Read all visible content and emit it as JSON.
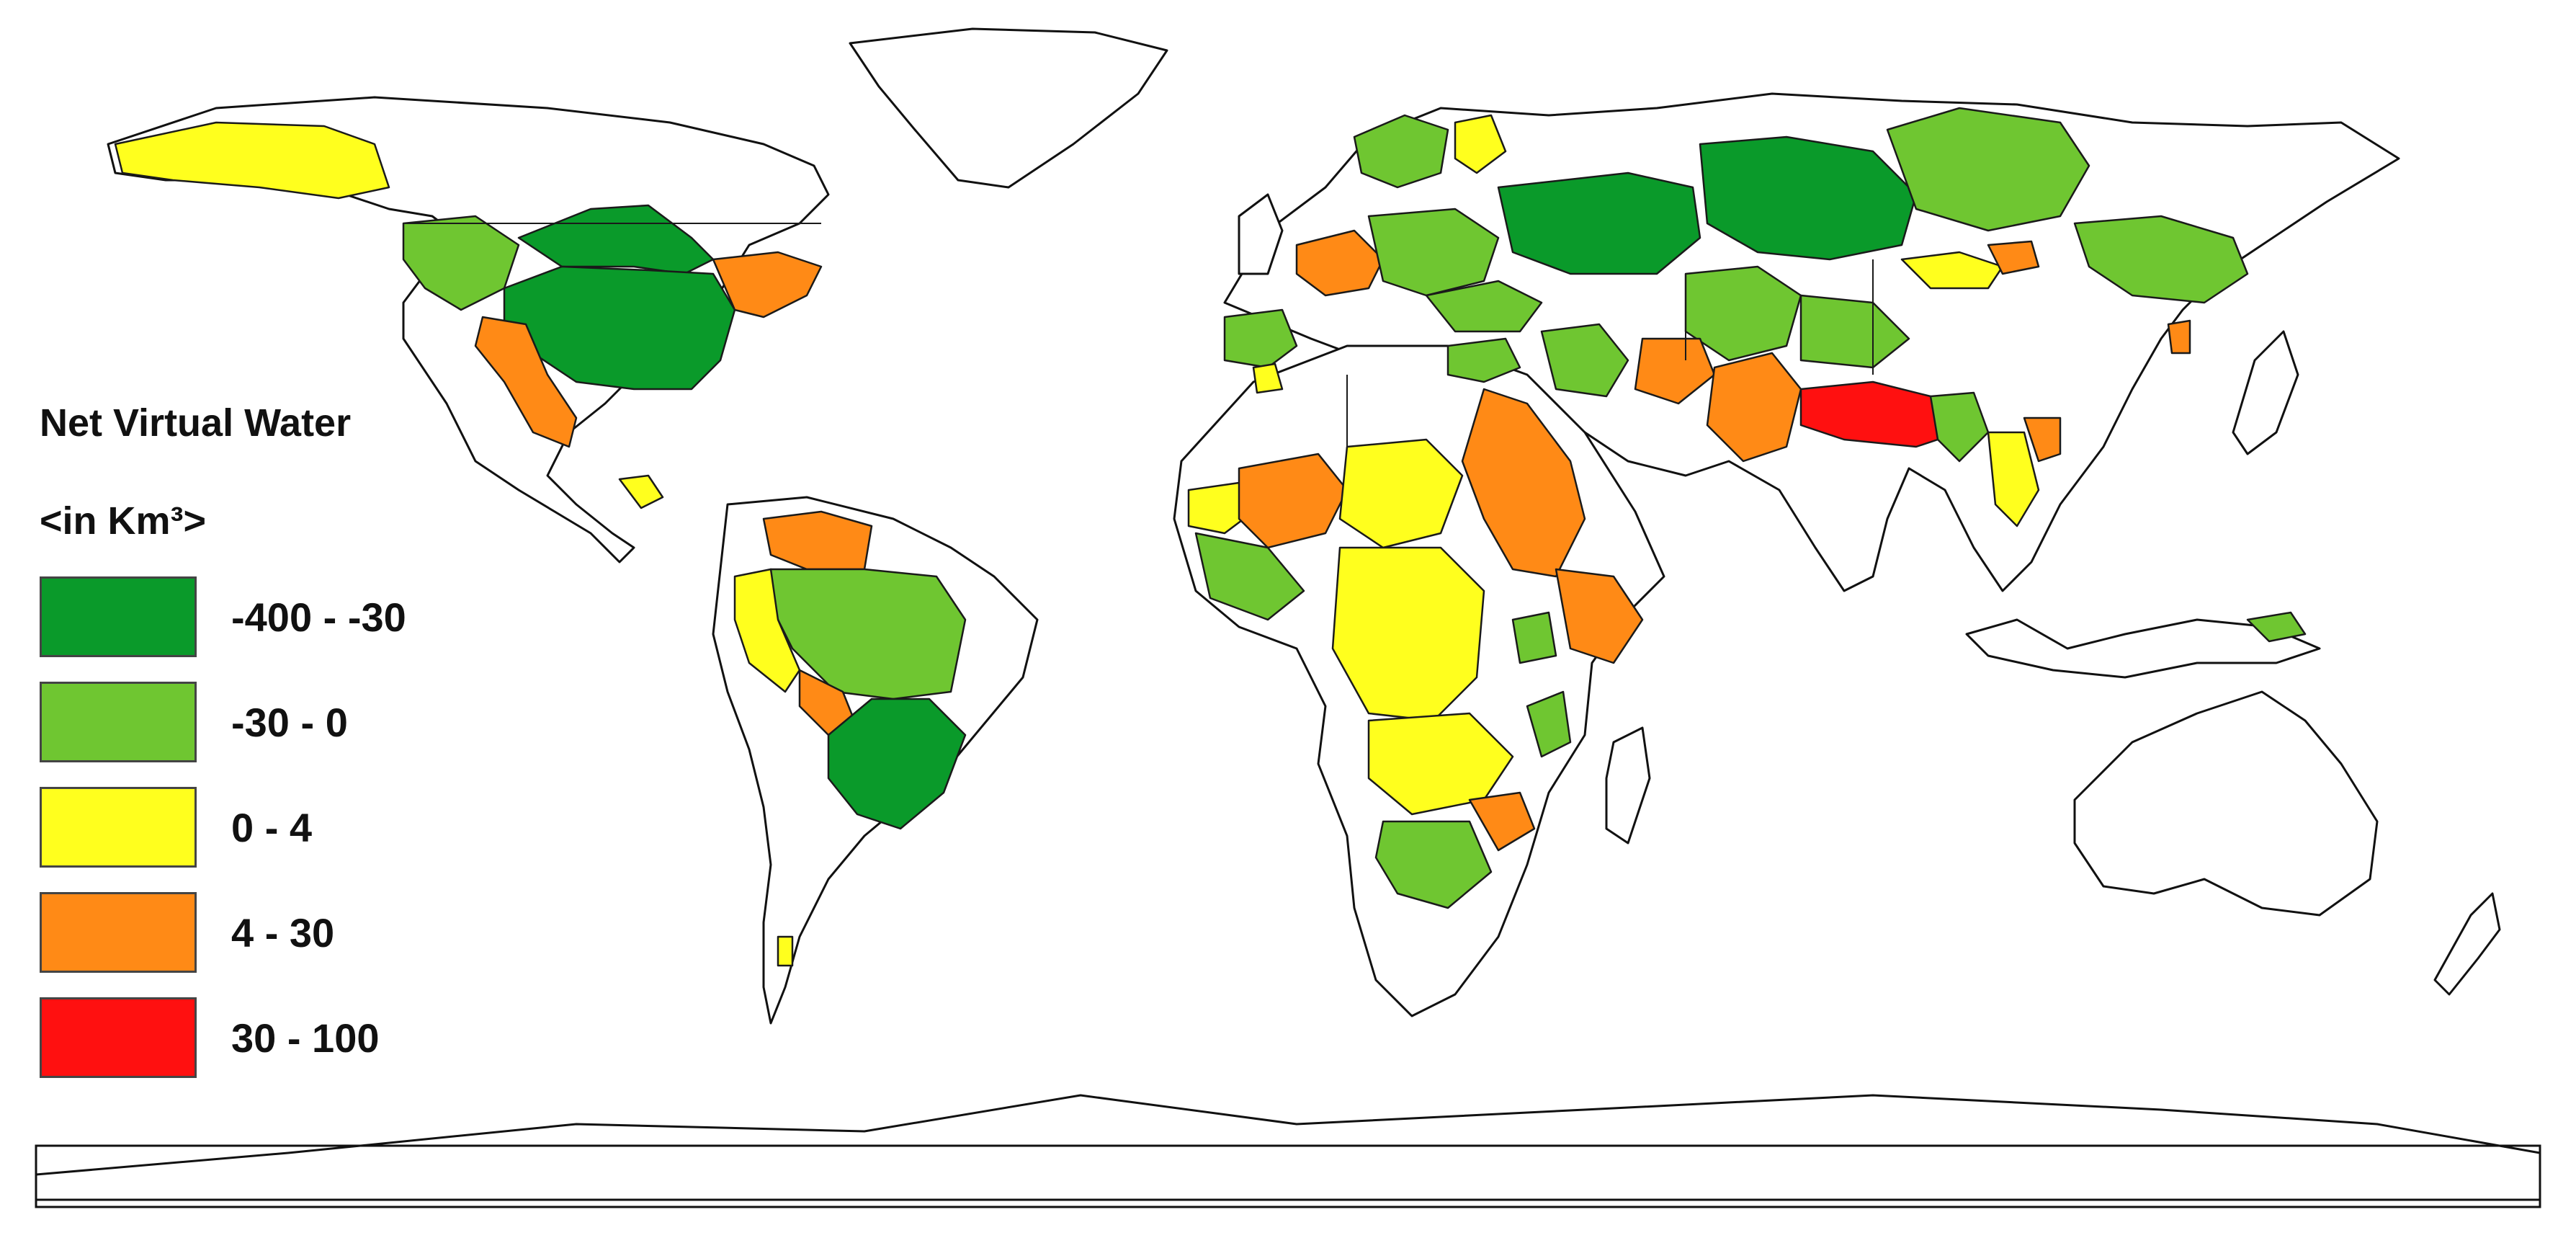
{
  "legend": {
    "title": "Net Virtual Water",
    "unit": "<in Km³>",
    "classes": [
      {
        "label": "-400 - -30",
        "color": "#0a9a2a"
      },
      {
        "label": "-30 - 0",
        "color": "#6fc631"
      },
      {
        "label": "0 - 4",
        "color": "#ffff1e"
      },
      {
        "label": "4 - 30",
        "color": "#ff8a16"
      },
      {
        "label": "30 - 100",
        "color": "#ff1010"
      }
    ]
  }
}
